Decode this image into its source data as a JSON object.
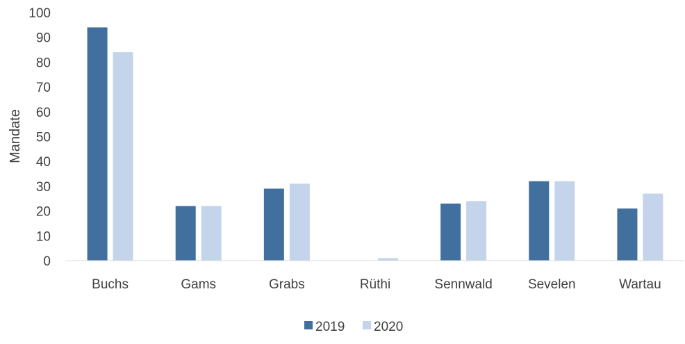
{
  "chart_data": {
    "type": "bar",
    "title": "",
    "xlabel": "",
    "ylabel": "Mandate",
    "ylim": [
      0,
      100
    ],
    "yticks": [
      0,
      10,
      20,
      30,
      40,
      50,
      60,
      70,
      80,
      90,
      100
    ],
    "grid": false,
    "legend_position": "bottom",
    "categories": [
      "Buchs",
      "Gams",
      "Grabs",
      "Rüthi",
      "Sennwald",
      "Sevelen",
      "Wartau"
    ],
    "series": [
      {
        "name": "2019",
        "color": "#41709F",
        "values": [
          94,
          22,
          29,
          0,
          23,
          32,
          21
        ]
      },
      {
        "name": "2020",
        "color": "#C4D4EA",
        "values": [
          84,
          22,
          31,
          1,
          24,
          32,
          27
        ]
      }
    ]
  }
}
